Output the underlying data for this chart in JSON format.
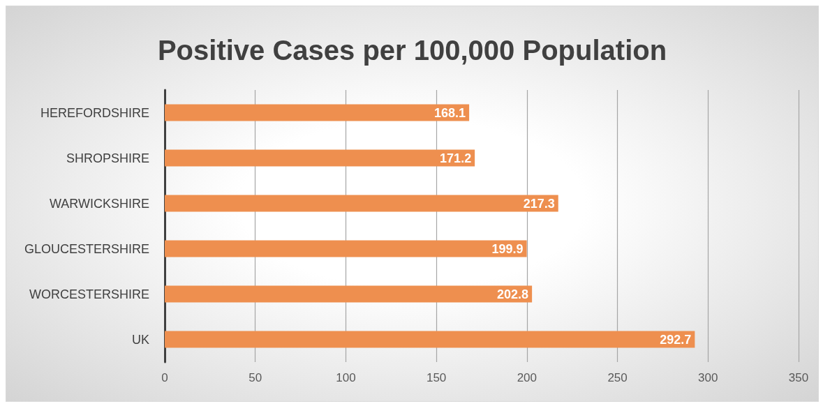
{
  "chart_data": {
    "type": "bar",
    "orientation": "horizontal",
    "title": "Positive Cases per 100,000 Population",
    "categories": [
      "HEREFORDSHIRE",
      "SHROPSHIRE",
      "WARWICKSHIRE",
      "GLOUCESTERSHIRE",
      "WORCESTERSHIRE",
      "UK"
    ],
    "values": [
      168.1,
      171.2,
      217.3,
      199.9,
      202.8,
      292.7
    ],
    "color": "#ee8f4f",
    "xlim": [
      0,
      350
    ],
    "xticks": [
      0,
      50,
      100,
      150,
      200,
      250,
      300,
      350
    ],
    "grid": "x",
    "data_labels": true
  }
}
